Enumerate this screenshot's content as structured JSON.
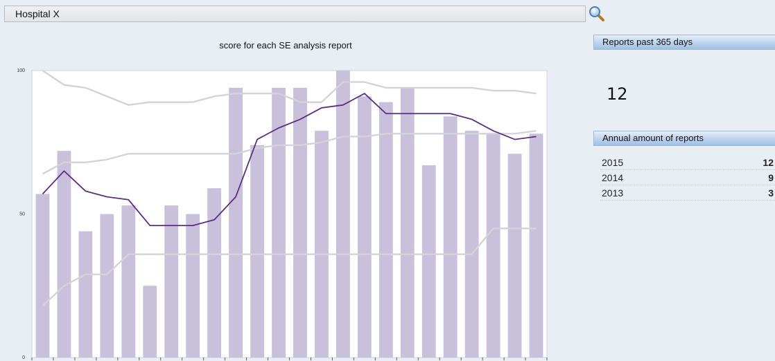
{
  "header": {
    "selector_value": "Hospital X"
  },
  "chart_data": {
    "type": "bar",
    "title": "score for each SE analysis report",
    "xlabel": "",
    "ylabel": "",
    "ylim": [
      0,
      100
    ],
    "yticks": [
      "0",
      "50",
      "100"
    ],
    "legend": "none",
    "series": [
      {
        "kind": "bar",
        "color": "#c9c0dc",
        "values": [
          57,
          72,
          44,
          50,
          53,
          25,
          53,
          50,
          59,
          94,
          74,
          94,
          94,
          79,
          100,
          91,
          89,
          94,
          67,
          84,
          79,
          78,
          71,
          78
        ]
      },
      {
        "kind": "line",
        "color": "#5a2f7e",
        "values": [
          57,
          65,
          58,
          56,
          55,
          46,
          46,
          46,
          48,
          56,
          76,
          80,
          83,
          87,
          88,
          92,
          85,
          85,
          85,
          85,
          83,
          79,
          76,
          77
        ]
      },
      {
        "kind": "line",
        "color": "#d4d4d8",
        "values": [
          100,
          95,
          94,
          91,
          88,
          89,
          89,
          89,
          91,
          92,
          92,
          92,
          89,
          89,
          96,
          96,
          94,
          94,
          94,
          94,
          94,
          93,
          93,
          92
        ]
      },
      {
        "kind": "line",
        "color": "#d4d4d8",
        "values": [
          64,
          68,
          68,
          69,
          71,
          71,
          71,
          71,
          71,
          71,
          73,
          74,
          74,
          75,
          77,
          77,
          78,
          78,
          78,
          78,
          78,
          78,
          78,
          79
        ]
      },
      {
        "kind": "line",
        "color": "#d4d4d8",
        "values": [
          18,
          25,
          29,
          29,
          36,
          36,
          36,
          36,
          36,
          36,
          36,
          36,
          36,
          36,
          36,
          36,
          36,
          36,
          36,
          36,
          36,
          45,
          45,
          45
        ]
      }
    ]
  },
  "reports_panel": {
    "title": "Reports past 365 days",
    "value": "12"
  },
  "annual_panel": {
    "title": "Annual amount of reports",
    "rows": [
      {
        "year": "2015",
        "count": "12"
      },
      {
        "year": "2014",
        "count": "9"
      },
      {
        "year": "2013",
        "count": "3"
      }
    ]
  }
}
